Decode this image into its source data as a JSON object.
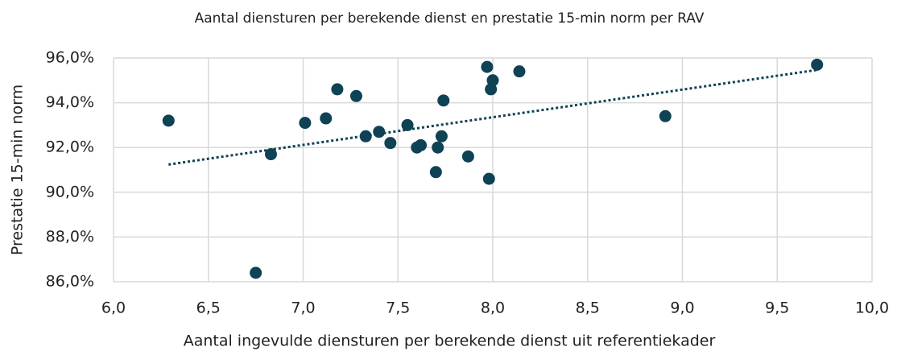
{
  "chart_data": {
    "type": "scatter",
    "title": "Aantal diensturen per berekende dienst en prestatie 15-min norm per RAV",
    "x_label": "Aantal ingevulde diensturen per berekende dienst uit referentiekader",
    "y_label": "Prestatie 15-min norm",
    "color": "#0e4254",
    "x": [
      6.29,
      6.75,
      6.83,
      7.01,
      7.12,
      7.18,
      7.28,
      7.33,
      7.4,
      7.46,
      7.55,
      7.6,
      7.62,
      7.7,
      7.71,
      7.73,
      7.74,
      7.87,
      7.97,
      7.98,
      7.99,
      8.0,
      8.14,
      8.91,
      9.71
    ],
    "values": [
      93.2,
      86.4,
      91.7,
      93.1,
      93.3,
      94.6,
      94.3,
      92.5,
      92.7,
      92.2,
      93.0,
      92.0,
      92.1,
      90.9,
      92.0,
      92.5,
      94.1,
      91.6,
      95.6,
      90.6,
      94.6,
      95.0,
      95.4,
      93.4,
      95.7
    ],
    "trendline": "linear",
    "xlim": [
      6.0,
      10.0
    ],
    "xticks": [
      {
        "value": 6.0,
        "label": "6,0"
      },
      {
        "value": 6.5,
        "label": "6,5"
      },
      {
        "value": 7.0,
        "label": "7,0"
      },
      {
        "value": 7.5,
        "label": "7,5"
      },
      {
        "value": 8.0,
        "label": "8,0"
      },
      {
        "value": 8.5,
        "label": "8,5"
      },
      {
        "value": 9.0,
        "label": "9,0"
      },
      {
        "value": 9.5,
        "label": "9,5"
      },
      {
        "value": 10.0,
        "label": "10,0"
      }
    ],
    "ylim": [
      86,
      96
    ],
    "yticks": [
      {
        "value": 86,
        "label": "86,0%"
      },
      {
        "value": 88,
        "label": "88,0%"
      },
      {
        "value": 90,
        "label": "90,0%"
      },
      {
        "value": 92,
        "label": "92,0%"
      },
      {
        "value": 94,
        "label": "94,0%"
      },
      {
        "value": 96,
        "label": "96,0%"
      }
    ],
    "grid": true
  }
}
